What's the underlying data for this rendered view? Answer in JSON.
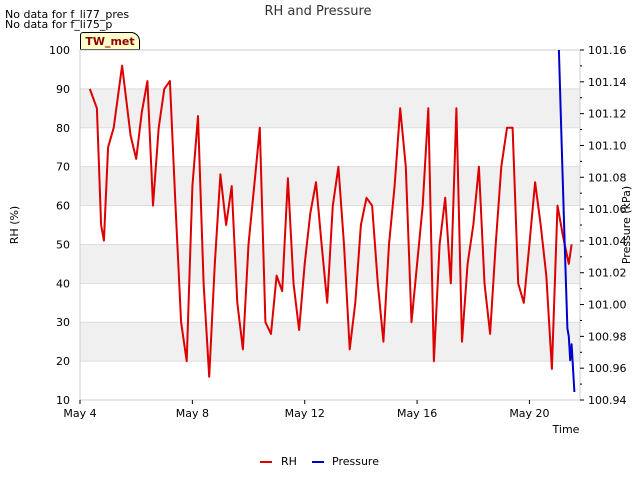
{
  "notices": [
    "No data for f_li77_pres",
    "No data for f_li75_p"
  ],
  "station_tag": "TW_met",
  "chart_data": {
    "type": "line",
    "title": "RH and Pressure",
    "xlabel": "Time",
    "ylabel_left": "RH (%)",
    "ylabel_right": "Pressure (kPa)",
    "x_ticks": [
      "May 4",
      "May 8",
      "May 12",
      "May 16",
      "May 20"
    ],
    "x_tick_values": [
      4,
      8,
      12,
      16,
      20
    ],
    "xlim": [
      4,
      21.8
    ],
    "ylim_left": [
      10,
      100
    ],
    "y_ticks_left": [
      "10",
      "20",
      "30",
      "40",
      "50",
      "60",
      "70",
      "80",
      "90",
      "100"
    ],
    "ylim_right": [
      100.94,
      101.16
    ],
    "y_ticks_right": [
      "100.94",
      "100.96",
      "100.98",
      "101.00",
      "101.02",
      "101.04",
      "101.06",
      "101.08",
      "101.10",
      "101.12",
      "101.14",
      "101.16"
    ],
    "series": [
      {
        "name": "RH",
        "color": "#dd0000",
        "axis": "left",
        "x": [
          4.35,
          4.6,
          4.75,
          4.85,
          5.0,
          5.2,
          5.5,
          5.8,
          6.0,
          6.2,
          6.4,
          6.6,
          6.8,
          7.0,
          7.2,
          7.4,
          7.6,
          7.8,
          8.0,
          8.2,
          8.4,
          8.6,
          8.8,
          9.0,
          9.2,
          9.4,
          9.6,
          9.8,
          10.0,
          10.2,
          10.4,
          10.6,
          10.8,
          11.0,
          11.2,
          11.4,
          11.6,
          11.8,
          12.0,
          12.2,
          12.4,
          12.6,
          12.8,
          13.0,
          13.2,
          13.4,
          13.6,
          13.8,
          14.0,
          14.2,
          14.4,
          14.6,
          14.8,
          15.0,
          15.2,
          15.4,
          15.6,
          15.8,
          16.0,
          16.2,
          16.4,
          16.6,
          16.8,
          17.0,
          17.2,
          17.4,
          17.6,
          17.8,
          18.0,
          18.2,
          18.4,
          18.6,
          18.8,
          19.0,
          19.2,
          19.4,
          19.6,
          19.8,
          20.0,
          20.2,
          20.4,
          20.6,
          20.8,
          21.0,
          21.2,
          21.4,
          21.5
        ],
        "values": [
          90,
          85,
          55,
          51,
          75,
          80,
          96,
          78,
          72,
          84,
          92,
          60,
          80,
          90,
          92,
          60,
          30,
          20,
          65,
          83,
          40,
          16,
          45,
          68,
          55,
          65,
          35,
          23,
          50,
          65,
          80,
          30,
          27,
          42,
          38,
          67,
          40,
          28,
          45,
          58,
          66,
          50,
          35,
          60,
          70,
          50,
          23,
          35,
          55,
          62,
          60,
          40,
          25,
          50,
          65,
          85,
          70,
          30,
          45,
          60,
          85,
          20,
          50,
          62,
          40,
          85,
          25,
          45,
          55,
          70,
          40,
          27,
          50,
          70,
          80,
          80,
          40,
          35,
          50,
          66,
          55,
          42,
          18,
          60,
          52,
          45,
          50
        ]
      },
      {
        "name": "Pressure",
        "color": "#0000cc",
        "axis": "right",
        "x": [
          21.05,
          21.15,
          21.25,
          21.35,
          21.4,
          21.45,
          21.5,
          21.55,
          21.6
        ],
        "values": [
          101.16,
          101.1,
          101.04,
          100.985,
          100.98,
          100.965,
          100.975,
          100.96,
          100.945
        ]
      }
    ]
  }
}
